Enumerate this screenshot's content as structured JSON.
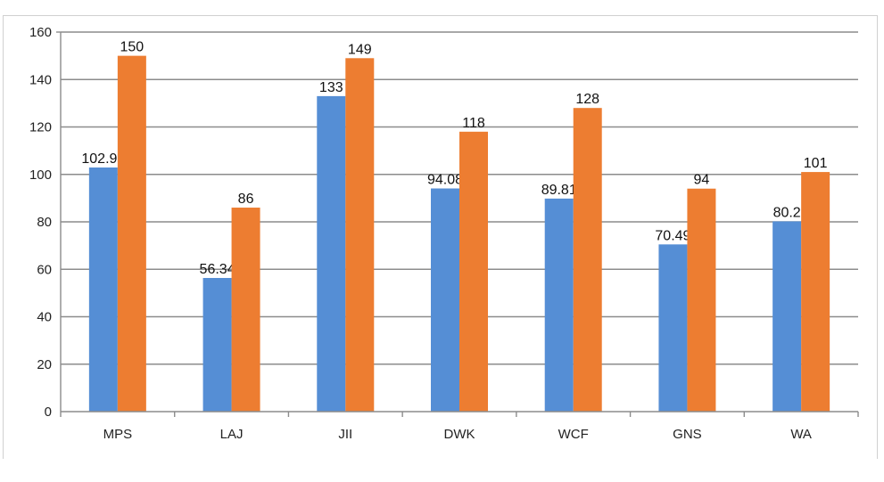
{
  "chart_data": {
    "type": "bar",
    "categories": [
      "MPS",
      "LAJ",
      "JII",
      "DWK",
      "WCF",
      "GNS",
      "WA"
    ],
    "series": [
      {
        "values": [
          102.91,
          56.34,
          133,
          94.08,
          89.81,
          70.49,
          80.2
        ],
        "color": "#558ed5",
        "labels": [
          "102.91",
          "56.34",
          "133",
          "94.08",
          "89.81",
          "70.49",
          "80.2"
        ]
      },
      {
        "values": [
          150,
          86,
          149,
          118,
          128,
          94,
          101
        ],
        "color": "#ed7d31",
        "labels": [
          "150",
          "86",
          "149",
          "118",
          "128",
          "94",
          "101"
        ]
      }
    ],
    "ylim": [
      0,
      160
    ],
    "yticks": [
      "0",
      "20",
      "40",
      "60",
      "80",
      "100",
      "120",
      "140",
      "160"
    ],
    "title": "",
    "xlabel": "",
    "ylabel": "",
    "grid": true,
    "legend": "none"
  }
}
